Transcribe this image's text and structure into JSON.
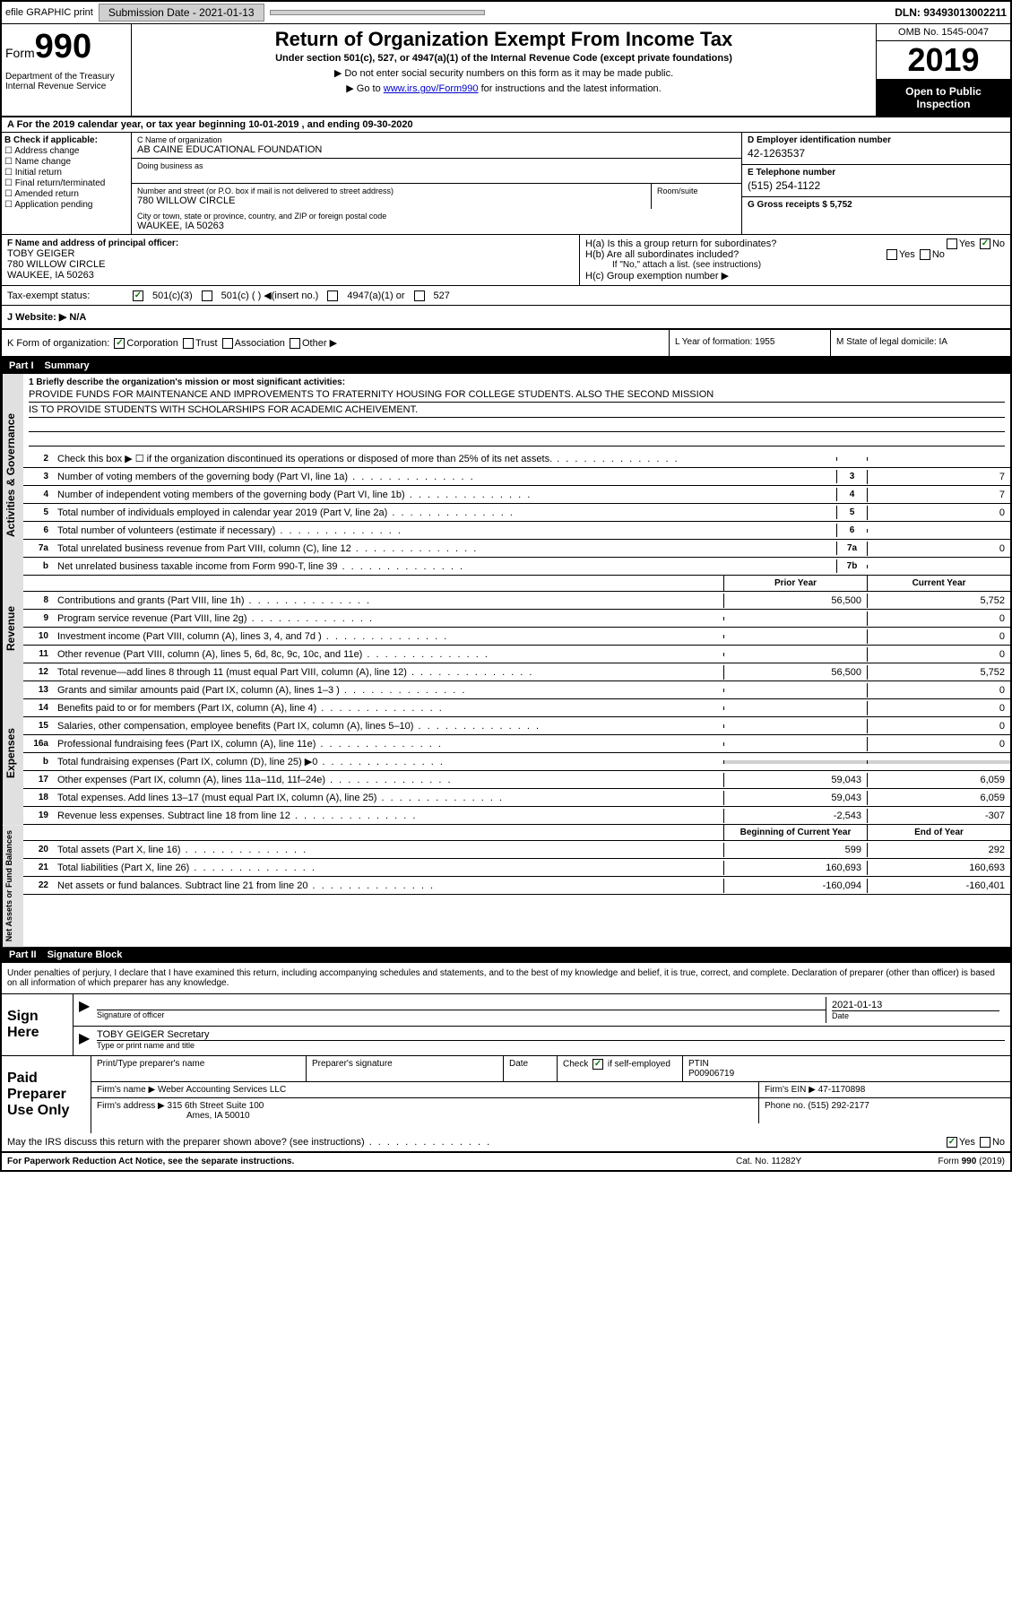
{
  "topbar": {
    "efile": "efile GRAPHIC print",
    "submission_label": "Submission Date - 2021-01-13",
    "dln": "DLN: 93493013002211"
  },
  "header": {
    "form_label": "Form",
    "form_num": "990",
    "title": "Return of Organization Exempt From Income Tax",
    "subtitle": "Under section 501(c), 527, or 4947(a)(1) of the Internal Revenue Code (except private foundations)",
    "note1": "▶ Do not enter social security numbers on this form as it may be made public.",
    "note2_pre": "▶ Go to ",
    "note2_link": "www.irs.gov/Form990",
    "note2_post": " for instructions and the latest information.",
    "omb": "OMB No. 1545-0047",
    "year": "2019",
    "openpub": "Open to Public Inspection",
    "dept": "Department of the Treasury\nInternal Revenue Service"
  },
  "period": {
    "text": "A For the 2019 calendar year, or tax year beginning 10-01-2019    , and ending 09-30-2020"
  },
  "section_b": {
    "label": "B Check if applicable:",
    "items": [
      "Address change",
      "Name change",
      "Initial return",
      "Final return/terminated",
      "Amended return",
      "Application pending"
    ]
  },
  "section_c": {
    "name_label": "C Name of organization",
    "name": "AB CAINE EDUCATIONAL FOUNDATION",
    "dba_label": "Doing business as",
    "dba": "",
    "addr_label": "Number and street (or P.O. box if mail is not delivered to street address)",
    "addr": "780 WILLOW CIRCLE",
    "room_label": "Room/suite",
    "city_label": "City or town, state or province, country, and ZIP or foreign postal code",
    "city": "WAUKEE, IA  50263"
  },
  "section_de": {
    "d_label": "D Employer identification number",
    "d_val": "42-1263537",
    "e_label": "E Telephone number",
    "e_val": "(515) 254-1122",
    "g_label": "G Gross receipts $ 5,752"
  },
  "officer": {
    "f_label": "F  Name and address of principal officer:",
    "name": "TOBY GEIGER",
    "addr1": "780 WILLOW CIRCLE",
    "addr2": "WAUKEE, IA  50263",
    "ha": "H(a)  Is this a group return for subordinates?",
    "hb": "H(b)  Are all subordinates included?",
    "hb_note": "If \"No,\" attach a list. (see instructions)",
    "hc": "H(c)  Group exemption number ▶",
    "yes": "Yes",
    "no": "No"
  },
  "tax": {
    "label": "Tax-exempt status:",
    "o1": "501(c)(3)",
    "o2": "501(c) (  ) ◀(insert no.)",
    "o3": "4947(a)(1) or",
    "o4": "527"
  },
  "website": {
    "label": "J   Website: ▶",
    "val": "N/A"
  },
  "formorg": {
    "k": "K Form of organization:",
    "corp": "Corporation",
    "trust": "Trust",
    "assoc": "Association",
    "other": "Other ▶",
    "l": "L Year of formation: 1955",
    "m": "M State of legal domicile: IA"
  },
  "part1": {
    "num": "Part I",
    "title": "Summary"
  },
  "mission": {
    "line1": "1  Briefly describe the organization's mission or most significant activities:",
    "text1": "PROVIDE FUNDS FOR MAINTENANCE AND IMPROVEMENTS TO FRATERNITY HOUSING FOR COLLEGE STUDENTS. ALSO THE SECOND MISSION",
    "text2": "IS TO PROVIDE STUDENTS WITH SCHOLARSHIPS FOR ACADEMIC ACHEIVEMENT."
  },
  "gov_lines": [
    {
      "n": "2",
      "t": "Check this box ▶ ☐ if the organization discontinued its operations or disposed of more than 25% of its net assets.",
      "box": "",
      "v": ""
    },
    {
      "n": "3",
      "t": "Number of voting members of the governing body (Part VI, line 1a)",
      "box": "3",
      "v": "7"
    },
    {
      "n": "4",
      "t": "Number of independent voting members of the governing body (Part VI, line 1b)",
      "box": "4",
      "v": "7"
    },
    {
      "n": "5",
      "t": "Total number of individuals employed in calendar year 2019 (Part V, line 2a)",
      "box": "5",
      "v": "0"
    },
    {
      "n": "6",
      "t": "Total number of volunteers (estimate if necessary)",
      "box": "6",
      "v": ""
    },
    {
      "n": "7a",
      "t": "Total unrelated business revenue from Part VIII, column (C), line 12",
      "box": "7a",
      "v": "0"
    },
    {
      "n": "b",
      "t": "Net unrelated business taxable income from Form 990-T, line 39",
      "box": "7b",
      "v": ""
    }
  ],
  "col_headers": {
    "prior": "Prior Year",
    "current": "Current Year"
  },
  "rev_lines": [
    {
      "n": "8",
      "t": "Contributions and grants (Part VIII, line 1h)",
      "p": "56,500",
      "c": "5,752"
    },
    {
      "n": "9",
      "t": "Program service revenue (Part VIII, line 2g)",
      "p": "",
      "c": "0"
    },
    {
      "n": "10",
      "t": "Investment income (Part VIII, column (A), lines 3, 4, and 7d )",
      "p": "",
      "c": "0"
    },
    {
      "n": "11",
      "t": "Other revenue (Part VIII, column (A), lines 5, 6d, 8c, 9c, 10c, and 11e)",
      "p": "",
      "c": "0"
    },
    {
      "n": "12",
      "t": "Total revenue—add lines 8 through 11 (must equal Part VIII, column (A), line 12)",
      "p": "56,500",
      "c": "5,752"
    }
  ],
  "exp_lines": [
    {
      "n": "13",
      "t": "Grants and similar amounts paid (Part IX, column (A), lines 1–3 )",
      "p": "",
      "c": "0"
    },
    {
      "n": "14",
      "t": "Benefits paid to or for members (Part IX, column (A), line 4)",
      "p": "",
      "c": "0"
    },
    {
      "n": "15",
      "t": "Salaries, other compensation, employee benefits (Part IX, column (A), lines 5–10)",
      "p": "",
      "c": "0"
    },
    {
      "n": "16a",
      "t": "Professional fundraising fees (Part IX, column (A), line 11e)",
      "p": "",
      "c": "0"
    },
    {
      "n": "b",
      "t": "Total fundraising expenses (Part IX, column (D), line 25) ▶0",
      "p": "shade",
      "c": "shade"
    },
    {
      "n": "17",
      "t": "Other expenses (Part IX, column (A), lines 11a–11d, 11f–24e)",
      "p": "59,043",
      "c": "6,059"
    },
    {
      "n": "18",
      "t": "Total expenses. Add lines 13–17 (must equal Part IX, column (A), line 25)",
      "p": "59,043",
      "c": "6,059"
    },
    {
      "n": "19",
      "t": "Revenue less expenses. Subtract line 18 from line 12",
      "p": "-2,543",
      "c": "-307"
    }
  ],
  "net_headers": {
    "beg": "Beginning of Current Year",
    "end": "End of Year"
  },
  "net_lines": [
    {
      "n": "20",
      "t": "Total assets (Part X, line 16)",
      "p": "599",
      "c": "292"
    },
    {
      "n": "21",
      "t": "Total liabilities (Part X, line 26)",
      "p": "160,693",
      "c": "160,693"
    },
    {
      "n": "22",
      "t": "Net assets or fund balances. Subtract line 21 from line 20",
      "p": "-160,094",
      "c": "-160,401"
    }
  ],
  "part2": {
    "num": "Part II",
    "title": "Signature Block"
  },
  "penalty": "Under penalties of perjury, I declare that I have examined this return, including accompanying schedules and statements, and to the best of my knowledge and belief, it is true, correct, and complete. Declaration of preparer (other than officer) is based on all information of which preparer has any knowledge.",
  "sign": {
    "label": "Sign Here",
    "sig_label": "Signature of officer",
    "date_label": "Date",
    "date": "2021-01-13",
    "name": "TOBY GEIGER  Secretary",
    "name_label": "Type or print name and title"
  },
  "prep": {
    "label": "Paid Preparer Use Only",
    "h1": "Print/Type preparer's name",
    "h2": "Preparer's signature",
    "h3": "Date",
    "h4": "Check ☑ if self-employed",
    "h5_label": "PTIN",
    "h5": "P00906719",
    "firm_label": "Firm's name    ▶",
    "firm": "Weber Accounting Services LLC",
    "ein_label": "Firm's EIN ▶",
    "ein": "47-1170898",
    "addr_label": "Firm's address ▶",
    "addr1": "315 6th Street Suite 100",
    "addr2": "Ames, IA  50010",
    "phone_label": "Phone no.",
    "phone": "(515) 292-2177"
  },
  "discuss": {
    "text": "May the IRS discuss this return with the preparer shown above? (see instructions)",
    "yes": "Yes",
    "no": "No"
  },
  "footer": {
    "left": "For Paperwork Reduction Act Notice, see the separate instructions.",
    "mid": "Cat. No. 11282Y",
    "right": "Form 990 (2019)"
  },
  "vtabs": {
    "gov": "Activities & Governance",
    "rev": "Revenue",
    "exp": "Expenses",
    "net": "Net Assets or Fund Balances"
  }
}
